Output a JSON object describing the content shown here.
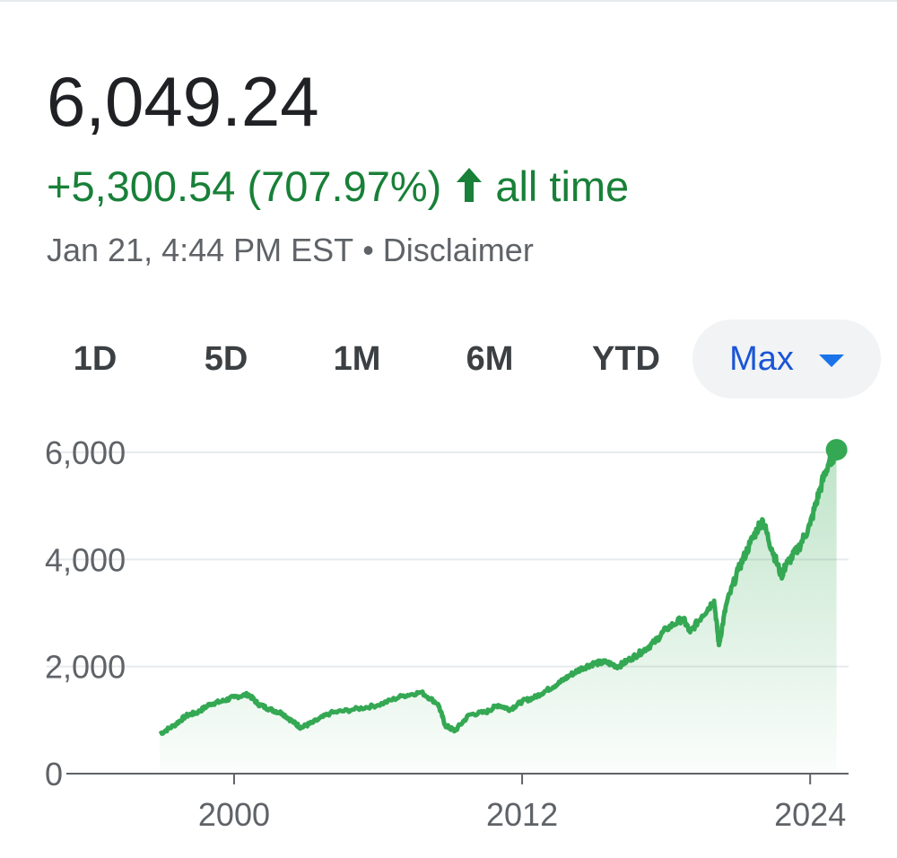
{
  "quote": {
    "price": "6,049.24",
    "change": "+5,300.54 (707.97%)",
    "change_period": "all time",
    "timestamp": "Jan 21, 4:44 PM EST",
    "separator": "•",
    "disclaimer": "Disclaimer",
    "up_color": "#188038",
    "up_icon": "arrow-up-icon"
  },
  "ranges": {
    "items": [
      "1D",
      "5D",
      "1M",
      "6M",
      "YTD",
      "Max"
    ],
    "selected": "Max",
    "dropdown_icon": "caret-down-icon"
  },
  "chart_data": {
    "type": "area",
    "ylim": [
      0,
      6000
    ],
    "y_ticks": [
      0,
      2000,
      4000,
      6000
    ],
    "y_tick_labels": [
      "0",
      "2,000",
      "4,000",
      "6,000"
    ],
    "x_ticks": [
      2000,
      2012,
      2024
    ],
    "x_tick_labels": [
      "2000",
      "2012",
      "2024"
    ],
    "xlim": [
      1996.9,
      2025.6
    ],
    "grid": true,
    "line_color": "#34a853",
    "fill_color": "#34a853",
    "series": [
      {
        "x": [
          1996.9,
          1997.5,
          1998.0,
          1998.5,
          1999.0,
          1999.5,
          2000.0,
          2000.6,
          2001.0,
          2001.5,
          2002.0,
          2002.5,
          2002.8,
          2003.3,
          2004.0,
          2005.0,
          2006.0,
          2007.0,
          2007.8,
          2008.5,
          2008.8,
          2009.2,
          2009.8,
          2010.5,
          2011.0,
          2011.5,
          2012.0,
          2012.5,
          2013.0,
          2013.5,
          2014.0,
          2014.5,
          2015.0,
          2015.5,
          2016.0,
          2016.5,
          2017.0,
          2017.5,
          2018.0,
          2018.7,
          2019.0,
          2019.5,
          2020.0,
          2020.2,
          2020.5,
          2021.0,
          2021.5,
          2022.0,
          2022.4,
          2022.8,
          2023.0,
          2023.5,
          2024.0,
          2024.4,
          2024.8,
          2025.0,
          2025.1
        ],
        "values": [
          740,
          900,
          1080,
          1150,
          1300,
          1350,
          1430,
          1480,
          1300,
          1200,
          1130,
          950,
          860,
          960,
          1130,
          1200,
          1280,
          1450,
          1520,
          1300,
          900,
          800,
          1100,
          1150,
          1280,
          1200,
          1350,
          1420,
          1550,
          1680,
          1840,
          1970,
          2060,
          2080,
          2000,
          2140,
          2280,
          2450,
          2700,
          2900,
          2640,
          2950,
          3230,
          2400,
          3150,
          3800,
          4300,
          4750,
          4200,
          3700,
          3900,
          4200,
          4650,
          5300,
          5850,
          5960,
          6049
        ]
      }
    ]
  }
}
